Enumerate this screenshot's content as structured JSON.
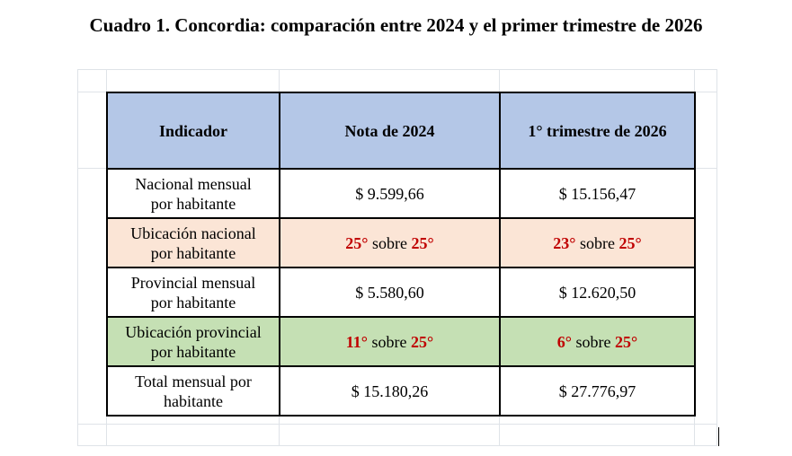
{
  "title": "Cuadro 1. Concordia: comparación entre 2024 y el primer trimestre de 2026",
  "colors": {
    "header_bg": "#b4c7e7",
    "peach_row": "#fbe5d6",
    "green_row": "#c5e0b4",
    "rank_red": "#c00000"
  },
  "table": {
    "headers": [
      "Indicador",
      "Nota de 2024",
      "1° trimestre de 2026"
    ],
    "rows": [
      {
        "indicator_line1": "Nacional mensual",
        "indicator_line2": "por habitante",
        "v2024": "$ 9.599,66",
        "v2026": "$ 15.156,47"
      },
      {
        "indicator_line1": "Ubicación nacional",
        "indicator_line2": "por habitante",
        "r2024_rank": "25°",
        "r2024_sep": " sobre ",
        "r2024_total": "25°",
        "r2026_rank": "23°",
        "r2026_sep": " sobre ",
        "r2026_total": "25°"
      },
      {
        "indicator_line1": "Provincial mensual",
        "indicator_line2": "por habitante",
        "v2024": "$ 5.580,60",
        "v2026": "$ 12.620,50"
      },
      {
        "indicator_line1": "Ubicación provincial",
        "indicator_line2": "por habitante",
        "r2024_rank": "11°",
        "r2024_sep": " sobre ",
        "r2024_total": "25°",
        "r2026_rank": "6°",
        "r2026_sep": " sobre ",
        "r2026_total": "25°"
      },
      {
        "indicator_line1": "Total mensual por",
        "indicator_line2": "habitante",
        "v2024": "$ 15.180,26",
        "v2026": "$ 27.776,97"
      }
    ]
  }
}
